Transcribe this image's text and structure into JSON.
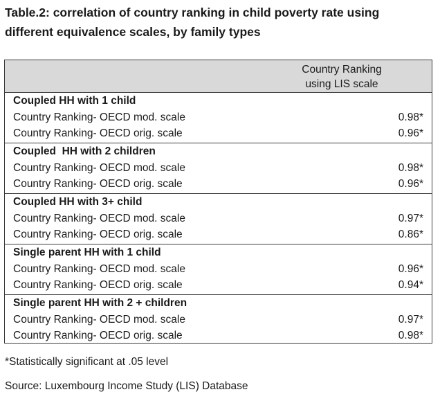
{
  "title": {
    "line1": "Table.2: correlation of country ranking in child poverty rate using",
    "line2": "different equivalence scales, by family types"
  },
  "table": {
    "header": {
      "line1": "Country Ranking",
      "line2": "using LIS scale"
    },
    "groups": [
      {
        "heading": "Coupled HH with 1 child",
        "rows": [
          {
            "label": "Country Ranking- OECD mod. scale",
            "value": "0.98*"
          },
          {
            "label": "Country Ranking- OECD orig. scale",
            "value": "0.96*"
          }
        ]
      },
      {
        "heading": "Coupled  HH with 2 children",
        "rows": [
          {
            "label": "Country Ranking- OECD mod. scale",
            "value": "0.98*"
          },
          {
            "label": "Country Ranking- OECD orig. scale",
            "value": "0.96*"
          }
        ]
      },
      {
        "heading": "Coupled HH with 3+ child",
        "rows": [
          {
            "label": "Country Ranking- OECD mod. scale",
            "value": "0.97*"
          },
          {
            "label": "Country Ranking- OECD orig. scale",
            "value": "0.86*"
          }
        ]
      },
      {
        "heading": "Single parent HH with 1 child",
        "rows": [
          {
            "label": "Country Ranking- OECD mod. scale",
            "value": "0.96*"
          },
          {
            "label": "Country Ranking- OECD orig. scale",
            "value": "0.94*"
          }
        ]
      },
      {
        "heading": "Single parent HH with 2 + children",
        "rows": [
          {
            "label": "Country Ranking- OECD mod. scale",
            "value": "0.97*"
          },
          {
            "label": "Country Ranking- OECD orig. scale",
            "value": "0.98*"
          }
        ]
      }
    ]
  },
  "footnote": "*Statistically significant at .05 level",
  "source": "Source: Luxembourg Income Study (LIS) Database"
}
